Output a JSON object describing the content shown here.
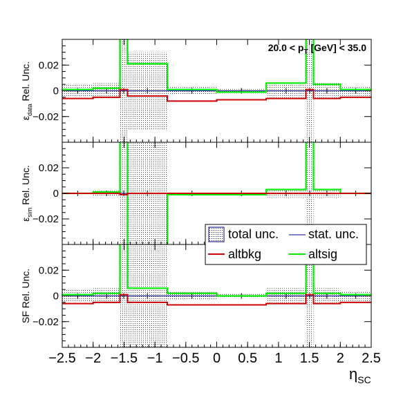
{
  "chart_data": {
    "type": "step",
    "x_bins": [
      -2.5,
      -2.0,
      -1.566,
      -1.444,
      -0.8,
      0.0,
      0.8,
      1.444,
      1.566,
      2.0,
      2.5
    ],
    "xlim": [
      -2.5,
      2.5
    ],
    "xticks": [
      "−2.5",
      "−2",
      "−1.5",
      "−1",
      "−0.5",
      "0",
      "0.5",
      "1",
      "1.5",
      "2",
      "2.5"
    ],
    "xlabel": "η",
    "xlabel_sub": "SC",
    "annotation": {
      "prefix": "20.0 < p",
      "sub": "T",
      "suffix": " [GeV] < 35.0"
    },
    "legend": {
      "total": "total unc.",
      "stat": "stat. unc.",
      "altbkg": "altbkg",
      "altsig": "altsig"
    },
    "colors": {
      "altbkg": "#cc0000",
      "altsig": "#00ee00",
      "stat": "#000099",
      "band": "#555555"
    },
    "panels": [
      {
        "ylabel_parts": [
          "ε",
          "data",
          " Rel. Unc."
        ],
        "ylim": [
          -0.04,
          0.04
        ],
        "yticks": [
          "0.02",
          "0",
          "−0.02"
        ],
        "total_unc": [
          0.005,
          0.006,
          0.05,
          0.03,
          0.003,
          0.002,
          0.006,
          0.05,
          0.006,
          0.004
        ],
        "altbkg": [
          -0.006,
          -0.005,
          0.001,
          -0.004,
          -0.008,
          -0.007,
          -0.006,
          0.001,
          -0.006,
          -0.005
        ],
        "altsig": [
          0.001,
          0.002,
          0.05,
          0.021,
          0.001,
          -0.001,
          0.006,
          0.05,
          0.005,
          0.001
        ]
      },
      {
        "ylabel_parts": [
          "ε",
          "sim",
          " Rel. Unc."
        ],
        "ylim": [
          -0.04,
          0.04
        ],
        "yticks": [
          "0.02",
          "0",
          "−0.02"
        ],
        "total_unc": [
          0.001,
          0.002,
          0.05,
          0.05,
          0.001,
          0.001,
          0.003,
          0.05,
          0.003,
          0.001
        ],
        "altbkg": [
          0.0,
          0.0,
          -0.001,
          0.0,
          0.0,
          0.0,
          0.0,
          0.0,
          0.0,
          0.0
        ],
        "altsig": [
          0.0,
          0.001,
          0.05,
          -0.05,
          -0.001,
          -0.001,
          0.003,
          0.05,
          0.003,
          0.0
        ]
      },
      {
        "ylabel_parts": [
          "SF Rel. Unc.",
          "",
          ""
        ],
        "ylim": [
          -0.04,
          0.04
        ],
        "yticks": [
          "0.02",
          "0",
          "−0.02"
        ],
        "total_unc": [
          0.005,
          0.006,
          0.05,
          0.05,
          0.003,
          0.002,
          0.006,
          0.05,
          0.006,
          0.004
        ],
        "altbkg": [
          -0.006,
          -0.005,
          0.001,
          -0.005,
          -0.007,
          -0.007,
          -0.006,
          0.001,
          -0.006,
          -0.005
        ],
        "altsig": [
          0.001,
          0.002,
          0.05,
          0.006,
          0.002,
          0.0,
          0.002,
          0.05,
          0.002,
          0.001
        ]
      }
    ]
  }
}
